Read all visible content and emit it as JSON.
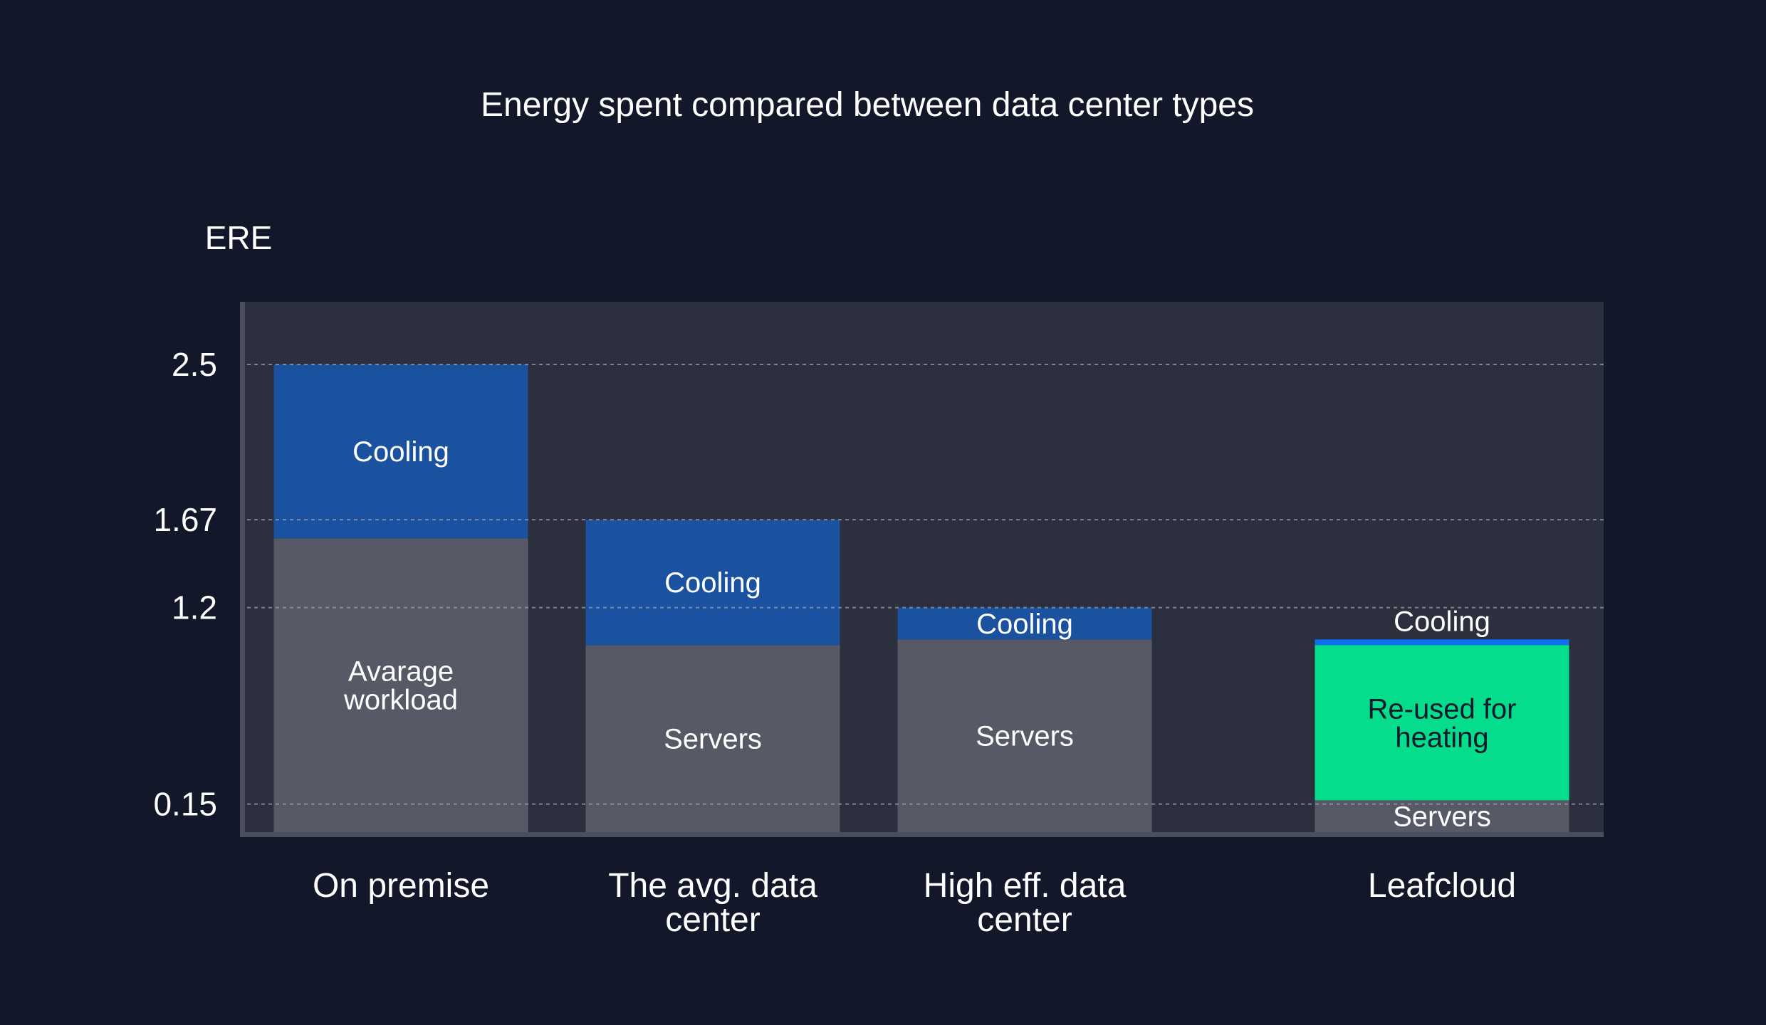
{
  "chart_data": {
    "type": "bar",
    "stacked": true,
    "title": "Energy spent compared between data center types",
    "ylabel": "ERE",
    "xlabel": "",
    "ylim": [
      0,
      2.5
    ],
    "yticks": [
      "2.5",
      "1.67",
      "1.2",
      "0.15"
    ],
    "ytick_values": [
      2.5,
      1.67,
      1.2,
      0.15
    ],
    "grid": "dashed horizontal at ticks",
    "categories": [
      [
        "On premise"
      ],
      [
        "The avg. data",
        "center"
      ],
      [
        "High eff. data",
        "center"
      ],
      [
        "Leafcloud"
      ]
    ],
    "bars": [
      {
        "category": "On premise",
        "segments": [
          {
            "label": [
              "Avarage",
              "workload"
            ],
            "from": 0,
            "to": 1.57,
            "color": "#575a66"
          },
          {
            "label": [
              "Cooling"
            ],
            "from": 1.57,
            "to": 2.5,
            "color": "#1a52a0"
          }
        ]
      },
      {
        "category": "The avg. data center",
        "segments": [
          {
            "label": [
              "Servers"
            ],
            "from": 0,
            "to": 1.0,
            "color": "#575a66"
          },
          {
            "label": [
              "Cooling"
            ],
            "from": 1.0,
            "to": 1.67,
            "color": "#1a52a0"
          }
        ]
      },
      {
        "category": "High eff. data center",
        "segments": [
          {
            "label": [
              "Servers"
            ],
            "from": 0,
            "to": 1.03,
            "color": "#575a66"
          },
          {
            "label": [
              "Cooling"
            ],
            "from": 1.03,
            "to": 1.2,
            "color": "#1a52a0"
          }
        ]
      },
      {
        "category": "Leafcloud",
        "segments": [
          {
            "label": [
              "Servers"
            ],
            "from": 0,
            "to": 0.17,
            "color": "#575a66"
          },
          {
            "label": [
              "Re-used for",
              "heating"
            ],
            "from": 0.17,
            "to": 1.0,
            "color": "#05dc8c",
            "dark_text": true
          },
          {
            "label": [
              "Cooling"
            ],
            "from": 1.0,
            "to": 1.03,
            "color": "#0f6ff0",
            "label_above": true
          }
        ]
      }
    ],
    "colors": {
      "background": "#12182a",
      "plot_area": "#2c2f3e",
      "servers": "#575a66",
      "cooling": "#1a52a0",
      "cooling_leaf": "#0f6ff0",
      "heating": "#05dc8c",
      "axis": "#4a4d5c",
      "grid": "#9a9cab"
    }
  }
}
